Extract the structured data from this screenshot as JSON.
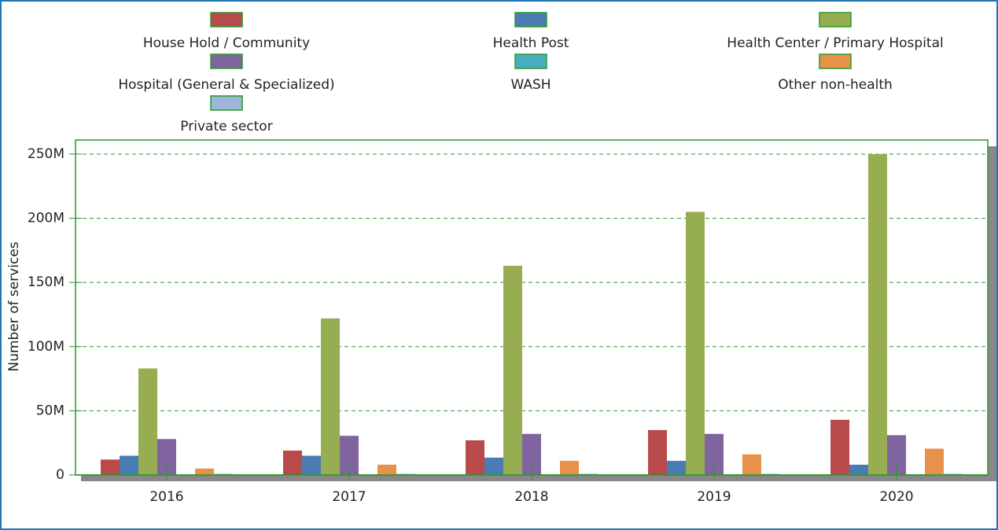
{
  "chart_data": {
    "type": "bar",
    "y_label": "Number of services",
    "categories": [
      "2016",
      "2017",
      "2018",
      "2019",
      "2020"
    ],
    "series": [
      {
        "name": "House Hold / Community",
        "color": "#b94a4c",
        "values": [
          12000000,
          19000000,
          27000000,
          35000000,
          43000000
        ]
      },
      {
        "name": "Health Post",
        "color": "#4a7cb4",
        "values": [
          15000000,
          15000000,
          13500000,
          11000000,
          8000000
        ]
      },
      {
        "name": "Health Center / Primary Hospital",
        "color": "#97ad52",
        "values": [
          83000000,
          122000000,
          163000000,
          205000000,
          250000000
        ]
      },
      {
        "name": "Hospital (General & Specialized)",
        "color": "#7f64a0",
        "values": [
          28000000,
          30500000,
          32000000,
          32000000,
          31000000
        ]
      },
      {
        "name": "WASH",
        "color": "#4aacc0",
        "values": [
          0,
          0,
          0,
          0,
          0
        ]
      },
      {
        "name": "Other non-health",
        "color": "#e8914a",
        "values": [
          5000000,
          8000000,
          11000000,
          16000000,
          20500000
        ]
      },
      {
        "name": "Private sector",
        "color": "#9db5d8",
        "values": [
          1000000,
          1000000,
          1000000,
          1000000,
          1000000
        ]
      }
    ],
    "ylim": [
      0,
      261000000
    ],
    "yticks": [
      0,
      {
        "value": 50000000,
        "label": "50M"
      },
      {
        "value": 100000000,
        "label": "100M"
      },
      {
        "value": 150000000,
        "label": "150M"
      },
      {
        "value": 200000000,
        "label": "200M"
      },
      {
        "value": 250000000,
        "label": "250M"
      }
    ],
    "grid": true
  }
}
